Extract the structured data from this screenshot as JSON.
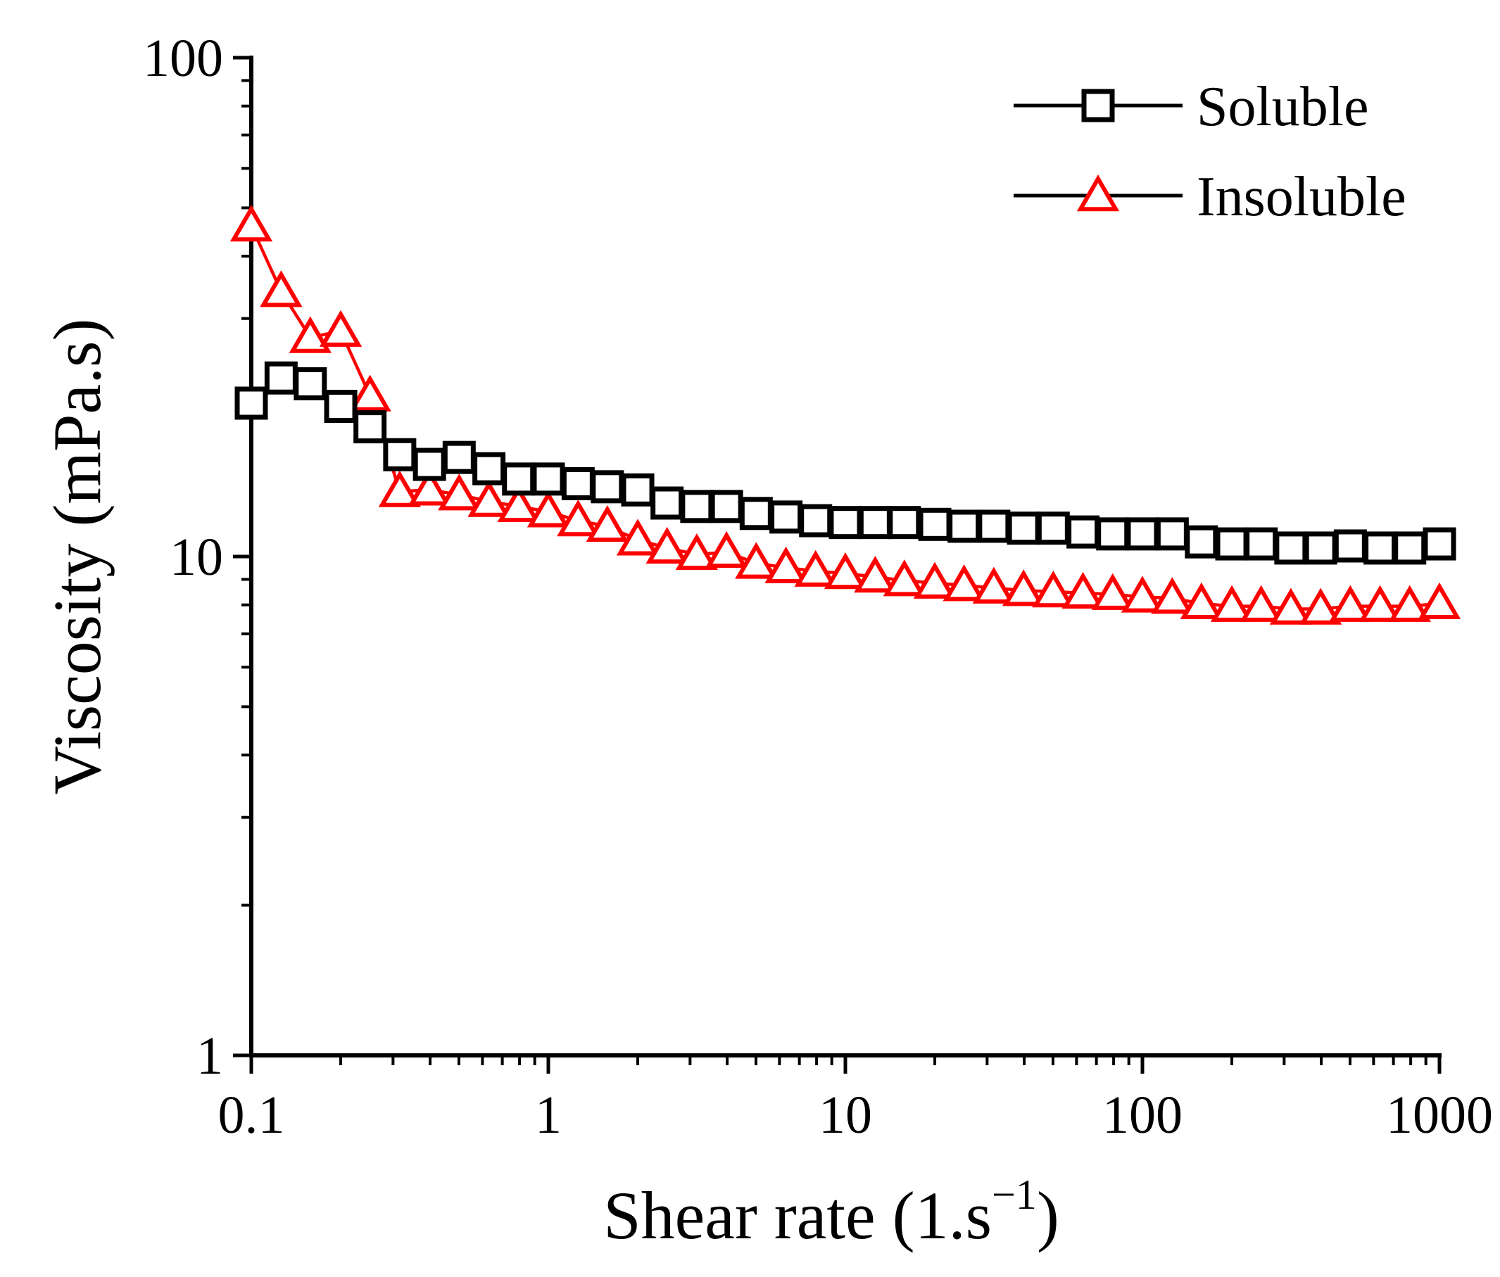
{
  "chart_data": {
    "type": "line",
    "x_scale": "log",
    "y_scale": "log",
    "xlim": [
      0.1,
      1000
    ],
    "ylim": [
      1,
      100
    ],
    "xlabel": "Shear rate (1.s",
    "xlabel_superscript": "−1",
    "xlabel_close": ")",
    "ylabel": "Viscosity (mPa.s)",
    "x_tick_labels": [
      "0.1",
      "1",
      "10",
      "100",
      "1000"
    ],
    "y_tick_labels": [
      "1",
      "10",
      "100"
    ],
    "legend_position": "top-right",
    "colors": {
      "soluble": "#000000",
      "insoluble": "#ff0000"
    },
    "series": [
      {
        "name": "Soluble",
        "marker": "square",
        "points": [
          [
            0.1,
            20.3
          ],
          [
            0.126,
            22.8
          ],
          [
            0.158,
            22.2
          ],
          [
            0.2,
            20.0
          ],
          [
            0.251,
            18.2
          ],
          [
            0.316,
            16.0
          ],
          [
            0.398,
            15.3
          ],
          [
            0.501,
            15.8
          ],
          [
            0.631,
            15.0
          ],
          [
            0.794,
            14.3
          ],
          [
            1.0,
            14.3
          ],
          [
            1.26,
            14.0
          ],
          [
            1.58,
            13.8
          ],
          [
            2.0,
            13.6
          ],
          [
            2.51,
            12.8
          ],
          [
            3.16,
            12.6
          ],
          [
            3.98,
            12.6
          ],
          [
            5.01,
            12.2
          ],
          [
            6.31,
            12.0
          ],
          [
            7.94,
            11.8
          ],
          [
            10.0,
            11.7
          ],
          [
            12.6,
            11.7
          ],
          [
            15.8,
            11.7
          ],
          [
            20.0,
            11.6
          ],
          [
            25.1,
            11.5
          ],
          [
            31.6,
            11.5
          ],
          [
            39.8,
            11.4
          ],
          [
            50.1,
            11.4
          ],
          [
            63.1,
            11.2
          ],
          [
            79.4,
            11.1
          ],
          [
            100,
            11.1
          ],
          [
            126,
            11.1
          ],
          [
            158,
            10.7
          ],
          [
            200,
            10.6
          ],
          [
            251,
            10.6
          ],
          [
            316,
            10.4
          ],
          [
            398,
            10.4
          ],
          [
            501,
            10.5
          ],
          [
            631,
            10.4
          ],
          [
            794,
            10.4
          ],
          [
            1000,
            10.6
          ]
        ]
      },
      {
        "name": "Insoluble",
        "marker": "triangle",
        "points": [
          [
            0.1,
            46.0
          ],
          [
            0.126,
            34.0
          ],
          [
            0.158,
            27.5
          ],
          [
            0.2,
            28.3
          ],
          [
            0.251,
            21.0
          ],
          [
            0.316,
            13.5
          ],
          [
            0.398,
            13.6
          ],
          [
            0.501,
            13.3
          ],
          [
            0.631,
            12.9
          ],
          [
            0.794,
            12.6
          ],
          [
            1.0,
            12.3
          ],
          [
            1.26,
            11.8
          ],
          [
            1.58,
            11.5
          ],
          [
            2.0,
            10.8
          ],
          [
            2.51,
            10.4
          ],
          [
            3.16,
            10.1
          ],
          [
            3.98,
            10.2
          ],
          [
            5.01,
            9.7
          ],
          [
            6.31,
            9.5
          ],
          [
            7.94,
            9.35
          ],
          [
            10.0,
            9.25
          ],
          [
            12.6,
            9.1
          ],
          [
            15.8,
            8.95
          ],
          [
            20.0,
            8.85
          ],
          [
            25.1,
            8.75
          ],
          [
            31.6,
            8.65
          ],
          [
            39.8,
            8.55
          ],
          [
            50.1,
            8.5
          ],
          [
            63.1,
            8.45
          ],
          [
            79.4,
            8.4
          ],
          [
            100,
            8.3
          ],
          [
            126,
            8.25
          ],
          [
            158,
            8.05
          ],
          [
            200,
            7.95
          ],
          [
            251,
            7.95
          ],
          [
            316,
            7.85
          ],
          [
            398,
            7.85
          ],
          [
            501,
            7.95
          ],
          [
            631,
            7.95
          ],
          [
            794,
            7.95
          ],
          [
            1000,
            8.05
          ]
        ]
      }
    ]
  }
}
